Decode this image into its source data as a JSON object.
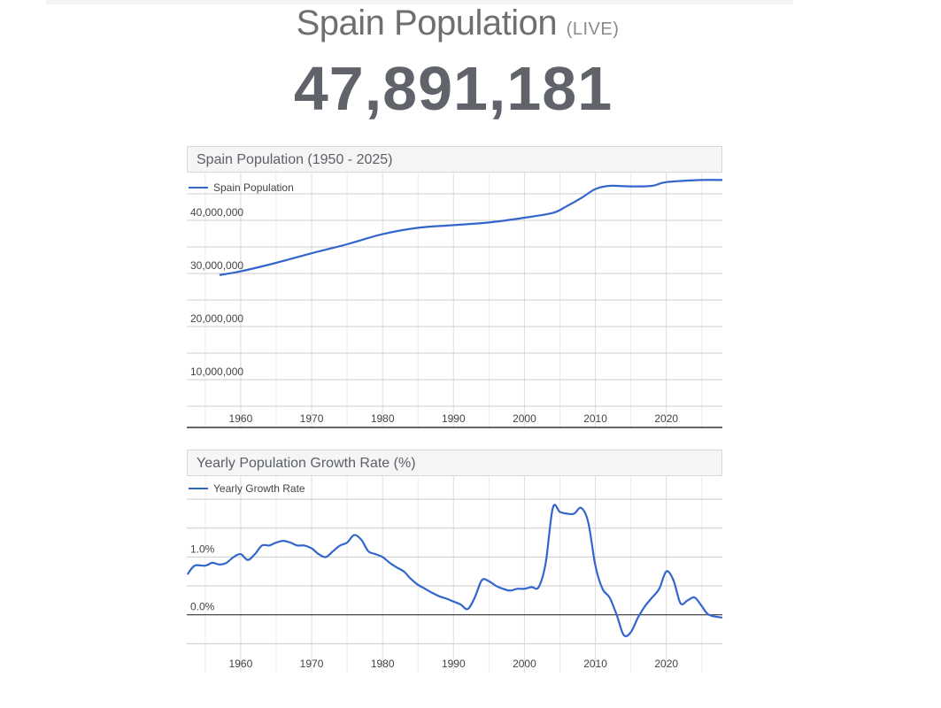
{
  "page": {
    "title": "Spain Population",
    "title_tag": "(LIVE)",
    "live_counter": "47,891,181"
  },
  "colors": {
    "line": "#3366cc",
    "grid": "#cccccc",
    "minor_grid": "#ebebeb",
    "text": "#444444"
  },
  "chart_data": [
    {
      "type": "line",
      "title": "Spain Population (1950 - 2025)",
      "xlabel": "",
      "ylabel": "",
      "xlim": [
        1952.4,
        2027.9
      ],
      "ylim": [
        1000000,
        49000000
      ],
      "x_ticks": [
        1960,
        1970,
        1980,
        1990,
        2000,
        2010,
        2020
      ],
      "x_tick_labels": [
        "1960",
        "1970",
        "1980",
        "1990",
        "2000",
        "2010",
        "2020"
      ],
      "y_ticks": [
        10000000,
        20000000,
        30000000,
        40000000
      ],
      "y_tick_labels": [
        "10,000,000",
        "20,000,000",
        "30,000,000",
        "40,000,000"
      ],
      "grid": true,
      "legend": "top-left",
      "series": [
        {
          "name": "Spain Population",
          "x": [
            1957,
            1960,
            1965,
            1970,
            1975,
            1980,
            1985,
            1990,
            1995,
            2000,
            2004,
            2006,
            2008,
            2010,
            2012,
            2015,
            2018,
            2020,
            2025,
            2027.9
          ],
          "values": [
            29700000,
            30400000,
            32000000,
            33800000,
            35500000,
            37400000,
            38600000,
            39100000,
            39600000,
            40500000,
            41400000,
            42700000,
            44200000,
            45900000,
            46500000,
            46400000,
            46500000,
            47200000,
            47600000,
            47600000
          ]
        }
      ]
    },
    {
      "type": "line",
      "title": "Yearly Population Growth Rate (%)",
      "xlabel": "",
      "ylabel": "",
      "xlim": [
        1952.4,
        2027.9
      ],
      "ylim": [
        -1.0,
        2.4
      ],
      "x_ticks": [
        1960,
        1970,
        1980,
        1990,
        2000,
        2010,
        2020
      ],
      "x_tick_labels": [
        "1960",
        "1970",
        "1980",
        "1990",
        "2000",
        "2010",
        "2020"
      ],
      "y_ticks": [
        0.0,
        1.0
      ],
      "y_tick_labels": [
        "0.0%",
        "1.0%"
      ],
      "grid": true,
      "legend": "top-left",
      "series": [
        {
          "name": "Yearly Growth Rate",
          "x": [
            1952.5,
            1953.5,
            1955,
            1956,
            1957,
            1958,
            1959,
            1960,
            1961,
            1962,
            1963,
            1964,
            1965,
            1966,
            1967,
            1968,
            1969,
            1970,
            1971,
            1972,
            1973,
            1974,
            1975,
            1976,
            1977,
            1978,
            1979,
            1980,
            1981,
            1982,
            1983,
            1984,
            1985,
            1986,
            1987,
            1988,
            1989,
            1990,
            1991,
            1992,
            1993,
            1994,
            1995,
            1996,
            1997,
            1998,
            1999,
            2000,
            2001,
            2002,
            2003,
            2004,
            2005,
            2006,
            2007,
            2008,
            2009,
            2010,
            2011,
            2012,
            2013,
            2014,
            2015,
            2016,
            2017,
            2018,
            2019,
            2020,
            2021,
            2022,
            2023,
            2024,
            2025,
            2026,
            2027.9
          ],
          "values": [
            0.7,
            0.85,
            0.85,
            0.9,
            0.87,
            0.9,
            1.0,
            1.05,
            0.95,
            1.05,
            1.2,
            1.2,
            1.25,
            1.28,
            1.25,
            1.2,
            1.2,
            1.15,
            1.05,
            1.0,
            1.1,
            1.2,
            1.25,
            1.38,
            1.3,
            1.1,
            1.05,
            1.0,
            0.9,
            0.82,
            0.75,
            0.62,
            0.52,
            0.45,
            0.38,
            0.32,
            0.28,
            0.23,
            0.18,
            0.1,
            0.3,
            0.6,
            0.58,
            0.5,
            0.45,
            0.42,
            0.45,
            0.45,
            0.48,
            0.48,
            0.9,
            1.85,
            1.78,
            1.75,
            1.75,
            1.85,
            1.6,
            0.85,
            0.45,
            0.3,
            0.0,
            -0.35,
            -0.3,
            -0.05,
            0.15,
            0.3,
            0.45,
            0.75,
            0.6,
            0.2,
            0.25,
            0.3,
            0.15,
            0.0,
            -0.05
          ]
        }
      ]
    }
  ]
}
